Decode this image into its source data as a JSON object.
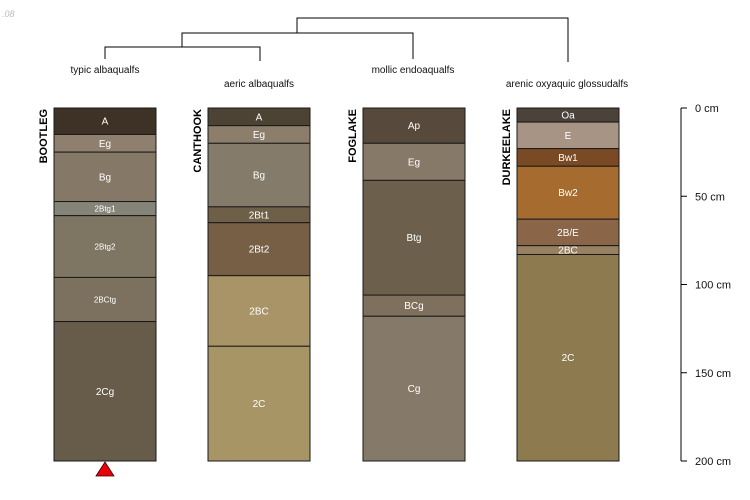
{
  "corner_text": ".08",
  "max_depth_cm": 200,
  "depth_scale": {
    "ticks": [
      0,
      50,
      100,
      150,
      200
    ],
    "labels": [
      "0 cm",
      "50 cm",
      "100 cm",
      "150 cm",
      "200 cm"
    ]
  },
  "profiles": [
    {
      "name": "BOOTLEG",
      "classification": "typic albaqualfs",
      "marker": "red-triangle",
      "horizons": [
        {
          "name": "A",
          "top": 0,
          "bottom": 15,
          "color": "#3e3126"
        },
        {
          "name": "Eg",
          "top": 15,
          "bottom": 25,
          "color": "#8e7f6f"
        },
        {
          "name": "Bg",
          "top": 25,
          "bottom": 53,
          "color": "#857866"
        },
        {
          "name": "2Btg1",
          "top": 53,
          "bottom": 61,
          "color": "#858478"
        },
        {
          "name": "2Btg2",
          "top": 61,
          "bottom": 96,
          "color": "#7f7563"
        },
        {
          "name": "2BCtg",
          "top": 96,
          "bottom": 121,
          "color": "#7b715e"
        },
        {
          "name": "2Cg",
          "top": 121,
          "bottom": 200,
          "color": "#675c4a"
        }
      ]
    },
    {
      "name": "CANTHOOK",
      "classification": "aeric albaqualfs",
      "horizons": [
        {
          "name": "A",
          "top": 0,
          "bottom": 10,
          "color": "#4d4334"
        },
        {
          "name": "Eg",
          "top": 10,
          "bottom": 20,
          "color": "#8c7e6b"
        },
        {
          "name": "Bg",
          "top": 20,
          "bottom": 56,
          "color": "#857b6a"
        },
        {
          "name": "2Bt1",
          "top": 56,
          "bottom": 65,
          "color": "#6d5f48"
        },
        {
          "name": "2Bt2",
          "top": 65,
          "bottom": 95,
          "color": "#775f46"
        },
        {
          "name": "2BC",
          "top": 95,
          "bottom": 135,
          "color": "#a89467"
        },
        {
          "name": "2C",
          "top": 135,
          "bottom": 200,
          "color": "#a79566"
        }
      ]
    },
    {
      "name": "FOGLAKE",
      "classification": "mollic endoaqualfs",
      "horizons": [
        {
          "name": "Ap",
          "top": 0,
          "bottom": 20,
          "color": "#574a3c"
        },
        {
          "name": "Eg",
          "top": 20,
          "bottom": 41,
          "color": "#877968"
        },
        {
          "name": "Btg",
          "top": 41,
          "bottom": 106,
          "color": "#6c604c"
        },
        {
          "name": "BCg",
          "top": 106,
          "bottom": 118,
          "color": "#7f705d"
        },
        {
          "name": "Cg",
          "top": 118,
          "bottom": 200,
          "color": "#857a69"
        }
      ]
    },
    {
      "name": "DURKEELAKE",
      "classification": "arenic oxyaquic glossudalfs",
      "horizons": [
        {
          "name": "Oa",
          "top": 0,
          "bottom": 8,
          "color": "#4b423a"
        },
        {
          "name": "E",
          "top": 8,
          "bottom": 23,
          "color": "#a89484"
        },
        {
          "name": "Bw1",
          "top": 23,
          "bottom": 33,
          "color": "#7a4a25"
        },
        {
          "name": "Bw2",
          "top": 33,
          "bottom": 63,
          "color": "#a66b2e"
        },
        {
          "name": "2B/E",
          "top": 63,
          "bottom": 78,
          "color": "#8a6548"
        },
        {
          "name": "2BC",
          "top": 78,
          "bottom": 83,
          "color": "#988163"
        },
        {
          "name": "2C",
          "top": 83,
          "bottom": 200,
          "color": "#8e7a4f"
        }
      ]
    }
  ]
}
